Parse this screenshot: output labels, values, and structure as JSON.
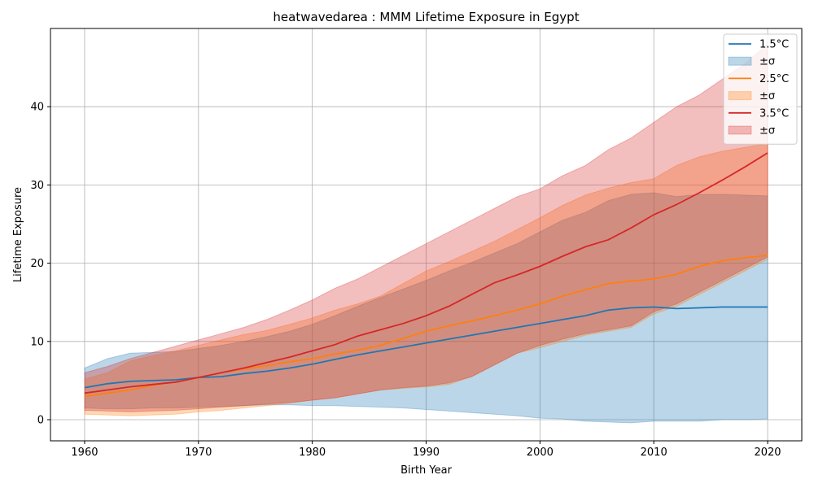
{
  "colors": {
    "series_1_5": "#1f77b4",
    "series_2_5": "#ff7f0e",
    "series_3_5": "#d62728",
    "band_1_5": "#1f77b4",
    "band_2_5": "#ff7f0e",
    "band_3_5": "#d62728",
    "grid": "#b0b0b0",
    "axes": "#000000"
  },
  "chart_data": {
    "type": "area",
    "title": "heatwavedarea : MMM Lifetime Exposure in Egypt",
    "xlabel": "Birth Year",
    "ylabel": "Lifetime Exposure",
    "xlim": [
      1957,
      2023
    ],
    "ylim": [
      -2.7,
      50
    ],
    "xticks": [
      1960,
      1970,
      1980,
      1990,
      2000,
      2010,
      2020
    ],
    "yticks": [
      0,
      10,
      20,
      30,
      40
    ],
    "grid": true,
    "legend_position": "top-right",
    "x": [
      1960,
      1962,
      1964,
      1966,
      1968,
      1970,
      1972,
      1974,
      1976,
      1978,
      1980,
      1982,
      1984,
      1986,
      1988,
      1990,
      1992,
      1994,
      1996,
      1998,
      2000,
      2002,
      2004,
      2006,
      2008,
      2010,
      2012,
      2014,
      2016,
      2018,
      2020
    ],
    "series": [
      {
        "name": "1.5°C",
        "band_label": "±σ",
        "values": [
          4.1,
          4.6,
          4.9,
          5.0,
          5.1,
          5.4,
          5.5,
          5.9,
          6.2,
          6.6,
          7.1,
          7.7,
          8.3,
          8.8,
          9.3,
          9.8,
          10.3,
          10.8,
          11.3,
          11.8,
          12.3,
          12.8,
          13.3,
          14.0,
          14.3,
          14.4,
          14.2,
          14.3,
          14.4,
          14.4,
          14.4
        ],
        "lower": [
          1.5,
          1.4,
          1.4,
          1.5,
          1.5,
          1.6,
          1.7,
          1.8,
          1.9,
          1.9,
          1.8,
          1.8,
          1.7,
          1.6,
          1.5,
          1.3,
          1.1,
          0.9,
          0.7,
          0.5,
          0.2,
          0.1,
          -0.2,
          -0.3,
          -0.4,
          -0.2,
          -0.2,
          -0.2,
          0.0,
          0.0,
          0.1
        ],
        "upper": [
          6.6,
          7.8,
          8.5,
          8.6,
          8.7,
          9.1,
          9.5,
          10.0,
          10.6,
          11.3,
          12.2,
          13.3,
          14.5,
          15.6,
          16.7,
          17.8,
          19.0,
          20.1,
          21.3,
          22.5,
          24.0,
          25.5,
          26.5,
          28.0,
          28.8,
          29.0,
          28.5,
          28.8,
          28.8,
          28.7,
          28.6
        ]
      },
      {
        "name": "2.5°C",
        "band_label": "±σ",
        "values": [
          3.0,
          3.4,
          3.8,
          4.4,
          4.8,
          5.4,
          6.0,
          6.5,
          6.9,
          7.4,
          7.8,
          8.4,
          8.9,
          9.5,
          10.4,
          11.3,
          12.0,
          12.6,
          13.3,
          14.0,
          14.8,
          15.8,
          16.6,
          17.4,
          17.7,
          18.0,
          18.6,
          19.6,
          20.3,
          20.7,
          21.0
        ],
        "lower": [
          0.7,
          0.6,
          0.5,
          0.6,
          0.7,
          1.0,
          1.2,
          1.5,
          1.8,
          2.1,
          2.5,
          2.8,
          3.3,
          3.8,
          4.0,
          4.2,
          4.5,
          5.5,
          7.0,
          8.5,
          9.2,
          10.0,
          10.8,
          11.3,
          11.8,
          13.5,
          14.5,
          16.0,
          17.5,
          19.0,
          20.5
        ],
        "upper": [
          5.2,
          6.0,
          7.5,
          8.2,
          8.8,
          9.5,
          10.2,
          10.9,
          11.4,
          12.2,
          13.0,
          14.0,
          14.8,
          15.8,
          17.4,
          19.0,
          20.2,
          21.5,
          22.8,
          24.3,
          25.8,
          27.4,
          28.7,
          29.6,
          30.3,
          30.8,
          32.5,
          33.6,
          34.3,
          34.8,
          35.3
        ]
      },
      {
        "name": "3.5°C",
        "band_label": "±σ",
        "values": [
          3.4,
          3.8,
          4.2,
          4.5,
          4.8,
          5.4,
          6.0,
          6.6,
          7.3,
          8.0,
          8.8,
          9.6,
          10.7,
          11.5,
          12.3,
          13.3,
          14.5,
          16.0,
          17.5,
          18.5,
          19.6,
          20.9,
          22.1,
          23.0,
          24.5,
          26.2,
          27.5,
          29.0,
          30.6,
          32.3,
          34.1
        ]
      }
    ],
    "band_3_5": {
      "lower": [
        1.2,
        1.1,
        1.0,
        1.1,
        1.2,
        1.4,
        1.6,
        1.8,
        2.0,
        2.2,
        2.5,
        2.8,
        3.3,
        3.8,
        4.1,
        4.3,
        4.7,
        5.5,
        7.0,
        8.5,
        9.5,
        10.3,
        11.0,
        11.5,
        12.0,
        13.8,
        14.8,
        16.3,
        17.8,
        19.3,
        20.8
      ],
      "upper": [
        6.0,
        6.8,
        7.8,
        8.6,
        9.4,
        10.2,
        11.0,
        11.8,
        12.8,
        14.0,
        15.3,
        16.8,
        18.0,
        19.5,
        21.0,
        22.5,
        24.0,
        25.5,
        27.0,
        28.5,
        29.5,
        31.2,
        32.5,
        34.5,
        36.0,
        38.0,
        40.0,
        41.5,
        43.5,
        45.5,
        48.0
      ]
    }
  }
}
